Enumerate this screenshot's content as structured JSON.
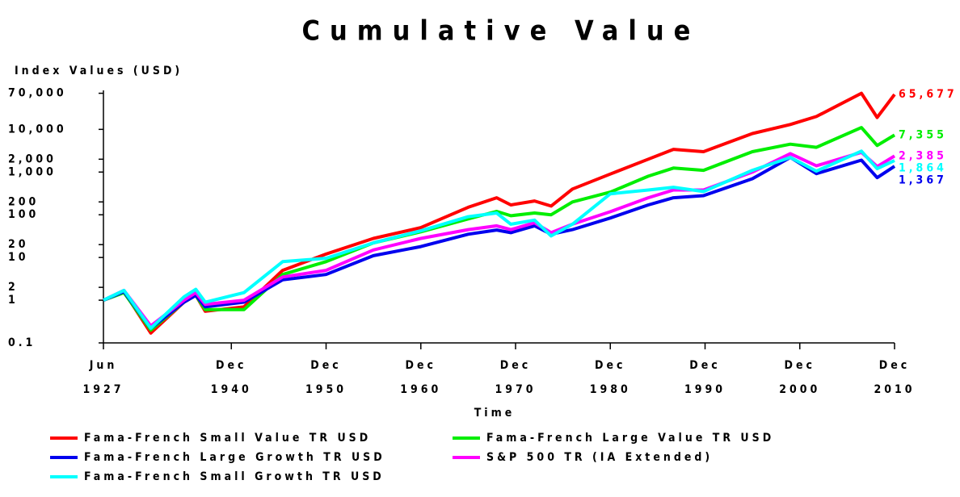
{
  "chart_data": {
    "type": "line",
    "title": "Cumulative Value",
    "y_label": "Index Values (USD)",
    "x_label": "Time",
    "log_y": true,
    "x": [
      "1927-06",
      "1929-08",
      "1932-06",
      "1935-12",
      "1937-03",
      "1938-03",
      "1942-04",
      "1946-05",
      "1950-12",
      "1955-12",
      "1960-12",
      "1965-12",
      "1968-12",
      "1970-06",
      "1972-12",
      "1974-09",
      "1976-12",
      "1980-12",
      "1984-12",
      "1987-08",
      "1990-10",
      "1995-12",
      "1999-12",
      "2002-09",
      "2007-06",
      "2009-02",
      "2010-12"
    ],
    "xlim": [
      "1927-06",
      "2010-12"
    ],
    "xticks": [
      {
        "value": "1927-06",
        "label": "Jun 1927"
      },
      {
        "value": "1940-12",
        "label": "Dec 1940"
      },
      {
        "value": "1950-12",
        "label": "Dec 1950"
      },
      {
        "value": "1960-12",
        "label": "Dec 1960"
      },
      {
        "value": "1970-12",
        "label": "Dec 1970"
      },
      {
        "value": "1980-12",
        "label": "Dec 1980"
      },
      {
        "value": "1990-12",
        "label": "Dec 1990"
      },
      {
        "value": "2000-12",
        "label": "Dec 2000"
      },
      {
        "value": "2010-12",
        "label": "Dec 2010"
      }
    ],
    "ylim": [
      0.1,
      70000
    ],
    "yticks": [
      0.1,
      1,
      2,
      10,
      20,
      100,
      200,
      {
        "value": 1000,
        "label": "1,000"
      },
      {
        "value": 2000,
        "label": "2,000"
      },
      {
        "value": 10000,
        "label": "10,000"
      },
      {
        "value": 70000,
        "label": "70,000"
      }
    ],
    "series": [
      {
        "name": "Fama-French Small Value TR USD",
        "color": "#ff0000",
        "values": [
          1,
          1.6,
          0.17,
          0.9,
          1.3,
          0.55,
          0.7,
          5,
          12,
          28,
          50,
          150,
          250,
          170,
          210,
          160,
          400,
          900,
          2000,
          3400,
          3000,
          8000,
          13000,
          20000,
          70000,
          19000,
          65677
        ],
        "end_label": "65,677"
      },
      {
        "name": "Fama-French Large Value TR USD",
        "color": "#00ee00",
        "values": [
          1,
          1.5,
          0.2,
          0.9,
          1.3,
          0.6,
          0.6,
          4,
          8,
          22,
          40,
          80,
          120,
          95,
          110,
          100,
          200,
          340,
          800,
          1240,
          1100,
          3000,
          4500,
          3800,
          11000,
          4200,
          7355
        ],
        "end_label": "7,355"
      },
      {
        "name": "Fama-French Large Growth TR USD",
        "color": "#0000ee",
        "values": [
          1,
          1.6,
          0.22,
          0.9,
          1.3,
          0.7,
          0.9,
          3,
          4,
          11,
          18,
          35,
          44,
          38,
          55,
          35,
          45,
          84,
          170,
          250,
          280,
          700,
          2200,
          920,
          1900,
          740,
          1367
        ],
        "end_label": "1,367"
      },
      {
        "name": "S&P 500 TR (IA Extended)",
        "color": "#ff00ff",
        "values": [
          1,
          1.7,
          0.25,
          1.0,
          1.5,
          0.8,
          1.0,
          3.5,
          5,
          15,
          28,
          45,
          55,
          45,
          65,
          38,
          60,
          118,
          250,
          380,
          380,
          1000,
          2700,
          1400,
          2900,
          1350,
          2385
        ],
        "end_label": "2,385"
      },
      {
        "name": "Fama-French Small Growth TR USD",
        "color": "#00ffff",
        "values": [
          1,
          1.7,
          0.22,
          1.2,
          1.8,
          0.9,
          1.5,
          8,
          9.6,
          22,
          42,
          90,
          110,
          60,
          75,
          32,
          60,
          310,
          380,
          440,
          350,
          1100,
          2200,
          1050,
          3100,
          1200,
          1864
        ],
        "end_label": "1,864"
      }
    ]
  }
}
